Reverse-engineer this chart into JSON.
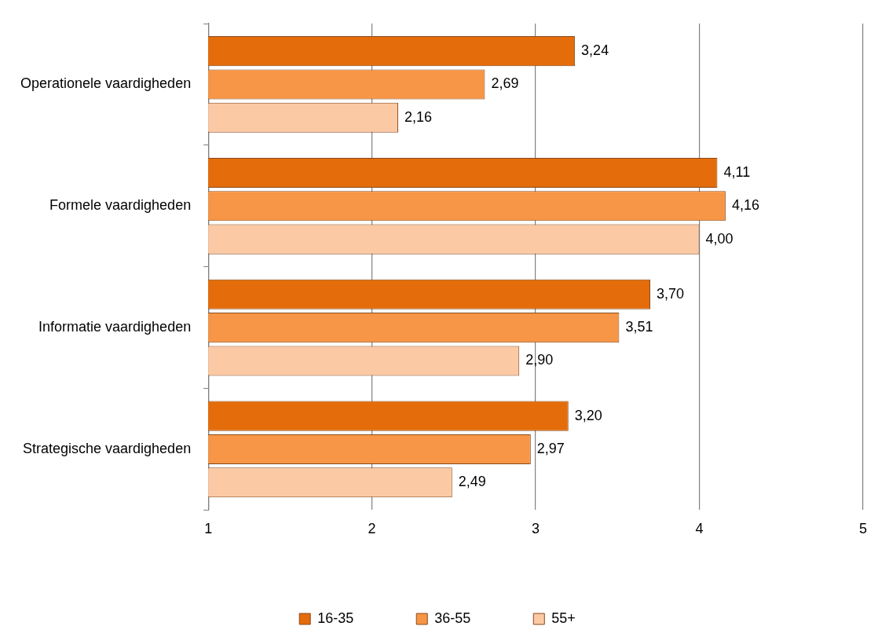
{
  "chart_data": {
    "type": "bar",
    "orientation": "horizontal",
    "categories": [
      "Operationele vaardigheden",
      "Formele vaardigheden",
      "Informatie vaardigheden",
      "Strategische vaardigheden"
    ],
    "series": [
      {
        "name": "16-35",
        "color": "#e46c0a",
        "values": [
          3.24,
          4.11,
          3.7,
          3.2
        ],
        "value_labels": [
          "3,24",
          "4,11",
          "3,70",
          "3,20"
        ]
      },
      {
        "name": "36-55",
        "color": "#f79646",
        "values": [
          2.69,
          4.16,
          3.51,
          2.97
        ],
        "value_labels": [
          "2,69",
          "4,16",
          "3,51",
          "2,97"
        ]
      },
      {
        "name": "55+",
        "color": "#fbc9a4",
        "values": [
          2.16,
          4.0,
          2.9,
          2.49
        ],
        "value_labels": [
          "2,16",
          "4,00",
          "2,90",
          "2,49"
        ]
      }
    ],
    "xlim": [
      1,
      5
    ],
    "xticks": [
      1,
      2,
      3,
      4,
      5
    ],
    "grid": "x",
    "legend": "bottom"
  }
}
